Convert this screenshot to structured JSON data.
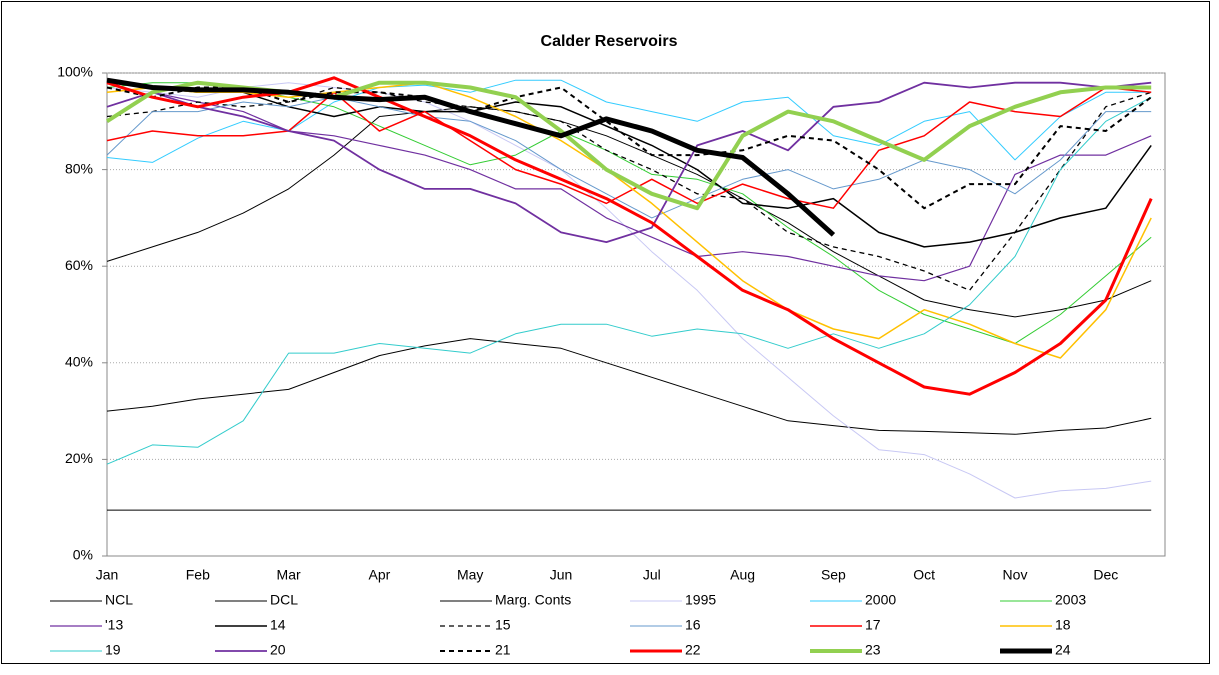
{
  "chart_data": {
    "type": "line",
    "title": "Calder Reservoirs",
    "categories": [
      "Jan",
      null,
      "Feb",
      null,
      "Mar",
      null,
      "Apr",
      null,
      "May",
      null,
      "Jun",
      null,
      "Jul",
      null,
      "Aug",
      null,
      "Sep",
      null,
      "Oct",
      null,
      "Nov",
      null,
      "Dec",
      null
    ],
    "ylim": [
      0,
      100
    ],
    "yticks": [
      {
        "value": 0,
        "label": "0%"
      },
      {
        "value": 20,
        "label": "20%"
      },
      {
        "value": 40,
        "label": "40%"
      },
      {
        "value": 60,
        "label": "60%"
      },
      {
        "value": 80,
        "label": "80%"
      },
      {
        "value": 100,
        "label": "100%"
      }
    ],
    "grid": true,
    "legend": "bottom",
    "series": [
      {
        "name": "NCL",
        "color": "#000000",
        "width": 1,
        "dash": false,
        "values": [
          61,
          64,
          67,
          71,
          76,
          83,
          91,
          92,
          93,
          92,
          90,
          87,
          83,
          79,
          74,
          69,
          63,
          58,
          53,
          51,
          49.5,
          51,
          53,
          57
        ]
      },
      {
        "name": "DCL",
        "color": "#000000",
        "width": 1,
        "dash": false,
        "values": [
          30,
          31,
          32.5,
          33.5,
          34.5,
          38,
          41.5,
          43.5,
          45,
          44,
          43,
          40,
          37,
          34,
          31,
          28,
          27,
          26,
          25.8,
          25.5,
          25.2,
          26,
          26.5,
          28.5
        ]
      },
      {
        "name": "Marg. Conts",
        "color": "#000000",
        "width": 1,
        "dash": false,
        "values": [
          9.5,
          9.5,
          9.5,
          9.5,
          9.5,
          9.5,
          9.5,
          9.5,
          9.5,
          9.5,
          9.5,
          9.5,
          9.5,
          9.5,
          9.5,
          9.5,
          9.5,
          9.5,
          9.5,
          9.5,
          9.5,
          9.5,
          9.5,
          9.5
        ]
      },
      {
        "name": "1995",
        "color": "#c8c8f4",
        "width": 1,
        "dash": false,
        "values": [
          97,
          96,
          95,
          97,
          98,
          97,
          96,
          94,
          90,
          85,
          80,
          72,
          63,
          55,
          45,
          37,
          29,
          22,
          21,
          17,
          12,
          13.5,
          14,
          15.5
        ]
      },
      {
        "name": "2000",
        "color": "#33ccff",
        "width": 1,
        "dash": false,
        "values": [
          82.5,
          81.5,
          86.5,
          90,
          88,
          94,
          97,
          97.5,
          96,
          98.5,
          98.5,
          94,
          92,
          90,
          94,
          95,
          87,
          85,
          90,
          92,
          82,
          91,
          96,
          96
        ]
      },
      {
        "name": "2003",
        "color": "#33cc33",
        "width": 1,
        "dash": false,
        "values": [
          97,
          98,
          98,
          97,
          95,
          93,
          89,
          85,
          81,
          83,
          88,
          84,
          79,
          78,
          75,
          68,
          62,
          55,
          50,
          47,
          44,
          50,
          58,
          66
        ]
      },
      {
        "name": "'13",
        "color": "#7030a0",
        "width": 1.2,
        "dash": false,
        "values": [
          93,
          96,
          94,
          92,
          88,
          87,
          85,
          83,
          80,
          76,
          76,
          70,
          66,
          62,
          63,
          62,
          60,
          58,
          57,
          60,
          79,
          83,
          83,
          87
        ]
      },
      {
        "name": "14",
        "color": "#000000",
        "width": 1.5,
        "dash": false,
        "values": [
          98,
          97,
          96,
          96,
          93,
          91,
          93,
          92,
          92,
          94,
          93,
          89,
          85,
          80,
          73,
          72,
          74,
          67,
          64,
          65,
          67,
          70,
          72,
          85
        ]
      },
      {
        "name": "15",
        "color": "#000000",
        "width": 1.3,
        "dash": true,
        "values": [
          91,
          92,
          94,
          93,
          94,
          97,
          96,
          94,
          93,
          92,
          90,
          84,
          80,
          75,
          74,
          67,
          64,
          62,
          59,
          55,
          67,
          80,
          93,
          96
        ]
      },
      {
        "name": "16",
        "color": "#6699cc",
        "width": 1,
        "dash": false,
        "values": [
          83,
          92,
          92,
          94,
          93,
          95,
          93,
          91,
          90,
          86,
          80,
          75,
          70,
          74,
          78,
          80,
          76,
          78,
          82,
          80,
          75,
          82,
          92,
          92
        ]
      },
      {
        "name": "17",
        "color": "#ff0000",
        "width": 1.5,
        "dash": false,
        "values": [
          86,
          88,
          87,
          87,
          88,
          96,
          88,
          92,
          86,
          80,
          77,
          73,
          78,
          73,
          77,
          74,
          72,
          84,
          87,
          94,
          92,
          91,
          97,
          96
        ]
      },
      {
        "name": "18",
        "color": "#ffc000",
        "width": 1.5,
        "dash": false,
        "values": [
          96,
          97,
          96,
          96,
          95,
          96,
          97,
          98,
          95,
          91,
          86,
          80,
          73,
          65,
          57,
          51,
          47,
          45,
          51,
          48,
          44,
          41,
          51,
          70
        ]
      },
      {
        "name": "19",
        "color": "#33cccc",
        "width": 1,
        "dash": false,
        "values": [
          19,
          23,
          22.5,
          28,
          42,
          42,
          44,
          43,
          42,
          46,
          48,
          48,
          45.5,
          47,
          46,
          43,
          46,
          43,
          46,
          52,
          62,
          80,
          90,
          95
        ]
      },
      {
        "name": "20",
        "color": "#7030a0",
        "width": 1.8,
        "dash": false,
        "values": [
          93,
          96,
          93,
          91,
          88,
          86,
          80,
          76,
          76,
          73,
          67,
          65,
          68,
          85,
          88,
          84,
          93,
          94,
          98,
          97,
          98,
          98,
          97,
          98
        ]
      },
      {
        "name": "21",
        "color": "#000000",
        "width": 2,
        "dash": true,
        "values": [
          97,
          95,
          97,
          97,
          94,
          96,
          96,
          95,
          92,
          95,
          97,
          90,
          83,
          83,
          84,
          87,
          86,
          80,
          72,
          77,
          77,
          89,
          88,
          95
        ]
      },
      {
        "name": "22",
        "color": "#ff0000",
        "width": 3,
        "dash": false,
        "values": [
          98,
          95,
          93,
          95,
          96,
          99,
          95,
          91,
          87,
          82,
          78,
          74,
          69,
          62,
          55,
          51,
          45,
          40,
          35,
          33.5,
          38,
          44,
          53,
          74
        ]
      },
      {
        "name": "23",
        "color": "#92d050",
        "width": 4,
        "dash": false,
        "values": [
          90,
          96,
          98,
          97,
          96,
          95,
          98,
          98,
          97,
          95,
          88,
          80,
          75,
          72,
          87,
          92,
          90,
          86,
          82,
          89,
          93,
          96,
          97,
          97
        ]
      },
      {
        "name": "24",
        "color": "#000000",
        "width": 5,
        "dash": false,
        "values": [
          98.5,
          97,
          96.5,
          96.5,
          96,
          95,
          94.5,
          95,
          92,
          89.5,
          87,
          90.5,
          88,
          84,
          82.5,
          75,
          66.5,
          null,
          null,
          null,
          null,
          null,
          null,
          null
        ]
      }
    ]
  }
}
